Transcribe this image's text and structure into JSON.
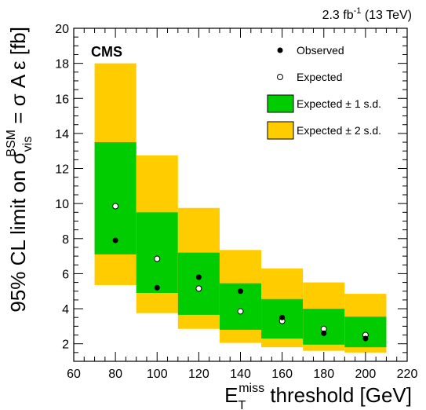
{
  "chart_data": {
    "type": "scatter",
    "experiment_label": "CMS",
    "luminosity": {
      "value": "2.3 fb",
      "superscript": "-1",
      "energy": " (13 TeV)"
    },
    "xlabel": {
      "main": "E",
      "sub": "T",
      "sup": "miss",
      "rest": " threshold [GeV]"
    },
    "ylabel": {
      "main": "95% CL limit on σ",
      "sub": "vis",
      "sup": "BSM",
      "rest": " = σ A ε [fb]"
    },
    "xlim": [
      60,
      220
    ],
    "ylim": [
      1,
      20
    ],
    "xticks": [
      60,
      80,
      100,
      120,
      140,
      160,
      180,
      200,
      220
    ],
    "yticks": [
      2,
      4,
      6,
      8,
      10,
      12,
      14,
      16,
      18,
      20
    ],
    "x": [
      80,
      100,
      120,
      140,
      160,
      180,
      200
    ],
    "bar_half_width": 10,
    "series": [
      {
        "name": "Observed",
        "marker": "filled-circle",
        "values": [
          7.9,
          5.2,
          5.8,
          5.0,
          3.5,
          2.6,
          2.3
        ]
      },
      {
        "name": "Expected",
        "marker": "open-circle",
        "values": [
          9.85,
          6.85,
          5.15,
          3.85,
          3.3,
          2.85,
          2.5
        ]
      },
      {
        "name": "Expected ± 1 s.d.",
        "band": "green",
        "low": [
          7.1,
          4.9,
          3.65,
          2.8,
          2.3,
          1.95,
          1.8
        ],
        "high": [
          13.5,
          9.5,
          7.2,
          5.45,
          4.55,
          4.0,
          3.55
        ]
      },
      {
        "name": "Expected ± 2 s.d.",
        "band": "yellow",
        "low": [
          5.35,
          3.75,
          2.85,
          2.05,
          1.8,
          1.6,
          1.5
        ],
        "high": [
          18.0,
          12.75,
          9.75,
          7.35,
          6.3,
          5.5,
          4.85
        ]
      }
    ],
    "legend_position": "top-right",
    "colors": {
      "band1": "#00cc00",
      "band2": "#ffcc00",
      "marker": "#000000"
    }
  }
}
